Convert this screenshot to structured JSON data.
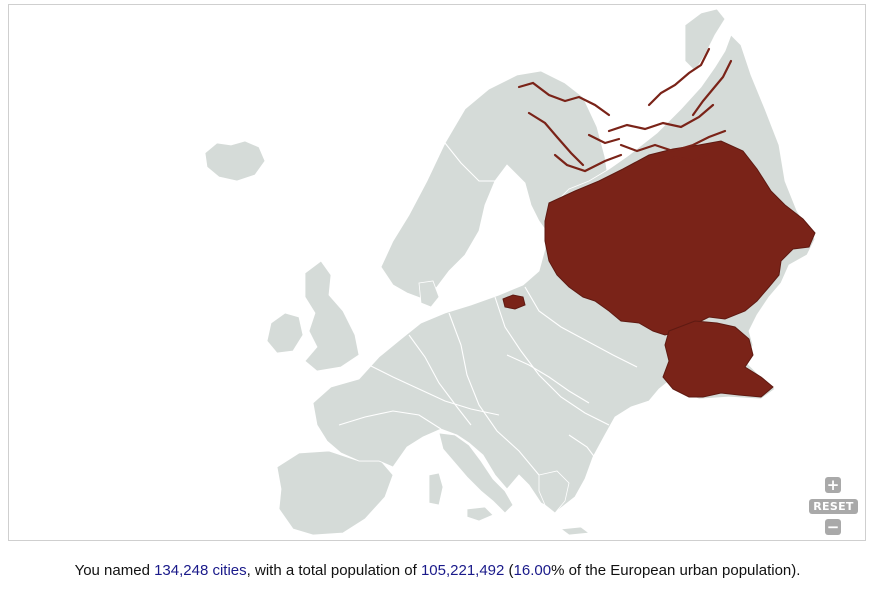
{
  "map": {
    "land_color": "#d5dbd8",
    "border_color": "#ffffff",
    "named_color": "#7a2318",
    "named_region": "European Russia",
    "controls": {
      "zoom_in": "+",
      "reset": "RESET",
      "zoom_out": "−"
    }
  },
  "summary": {
    "prefix": "You named ",
    "cities_count": "134,248 cities",
    "mid_text": ", with a total population of ",
    "population": "105,221,492",
    "paren_open": " (",
    "percent": "16.00",
    "suffix": "% of the European urban population)."
  }
}
